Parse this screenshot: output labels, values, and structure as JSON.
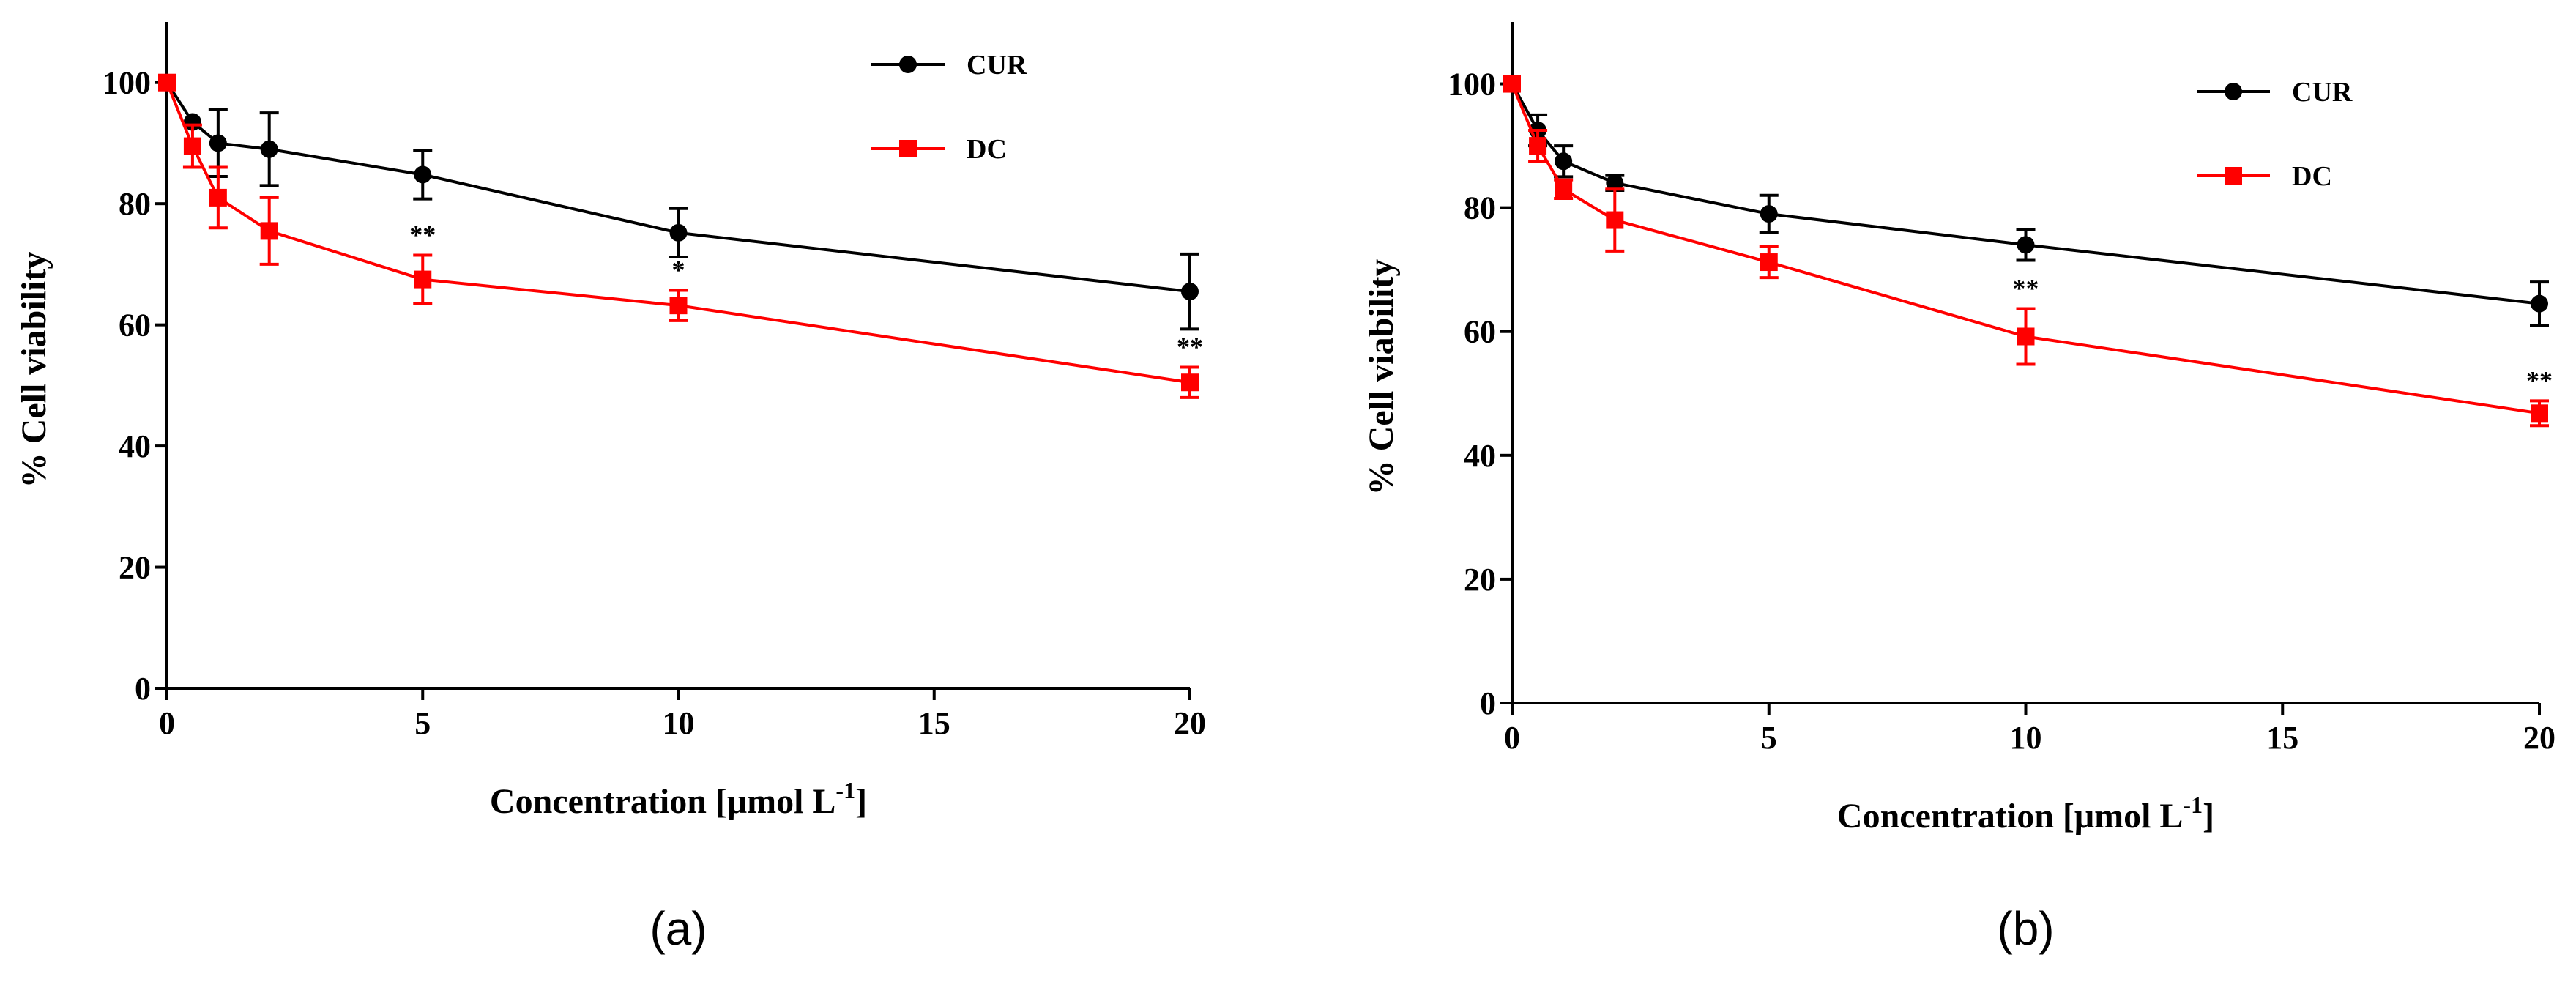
{
  "chart_data": [
    {
      "type": "line",
      "panel_label": "(a)",
      "xlabel": "Concentration [μmol L",
      "xlabel_sup": "-1",
      "xlabel_suffix": "]",
      "ylabel": "% Cell viability",
      "xlim": [
        0,
        20
      ],
      "ylim": [
        0,
        110
      ],
      "xticks": [
        0,
        5,
        10,
        15,
        20
      ],
      "yticks": [
        0,
        20,
        40,
        60,
        80,
        100
      ],
      "legend_position": "top-right",
      "series": [
        {
          "name": "CUR",
          "color": "#000000",
          "marker": "circle",
          "x": [
            0,
            0.5,
            1,
            2,
            5,
            10,
            20
          ],
          "y": [
            100,
            93.5,
            90,
            89,
            84.8,
            75.2,
            65.5
          ],
          "err": [
            0,
            0,
            5.5,
            6,
            4,
            4,
            6.2
          ],
          "annotations": [
            "",
            "",
            "",
            "",
            "",
            "",
            ""
          ]
        },
        {
          "name": "DC",
          "color": "#ff0000",
          "marker": "square",
          "x": [
            0,
            0.5,
            1,
            2,
            5,
            10,
            20
          ],
          "y": [
            100,
            89.5,
            81,
            75.5,
            67.5,
            63.2,
            50.5
          ],
          "err": [
            0,
            3.5,
            5,
            5.5,
            4,
            2.5,
            2.5
          ],
          "annotations": [
            "",
            "",
            "",
            "",
            "**",
            "*",
            "**"
          ]
        }
      ]
    },
    {
      "type": "line",
      "panel_label": "(b)",
      "xlabel": "Concentration [μmol L",
      "xlabel_sup": "-1",
      "xlabel_suffix": "]",
      "ylabel": "% Cell viability",
      "xlim": [
        0,
        20
      ],
      "ylim": [
        0,
        110
      ],
      "xticks": [
        0,
        5,
        10,
        15,
        20
      ],
      "yticks": [
        0,
        20,
        40,
        60,
        80,
        100
      ],
      "legend_position": "top-right",
      "series": [
        {
          "name": "CUR",
          "color": "#000000",
          "marker": "circle",
          "x": [
            0,
            0.5,
            1,
            2,
            5,
            10,
            20
          ],
          "y": [
            100,
            92.5,
            87.5,
            84,
            79,
            74,
            64.5
          ],
          "err": [
            0,
            2.5,
            2.5,
            1.2,
            3,
            2.5,
            3.5
          ],
          "annotations": [
            "",
            "",
            "",
            "",
            "",
            "",
            ""
          ]
        },
        {
          "name": "DC",
          "color": "#ff0000",
          "marker": "square",
          "x": [
            0,
            0.5,
            1,
            2,
            5,
            10,
            20
          ],
          "y": [
            100,
            90,
            83,
            78,
            71.2,
            59.2,
            46.8
          ],
          "err": [
            0,
            2.5,
            1.5,
            5,
            2.5,
            4.5,
            2
          ],
          "annotations": [
            "",
            "",
            "",
            "",
            "",
            "**",
            "**"
          ]
        }
      ]
    }
  ]
}
